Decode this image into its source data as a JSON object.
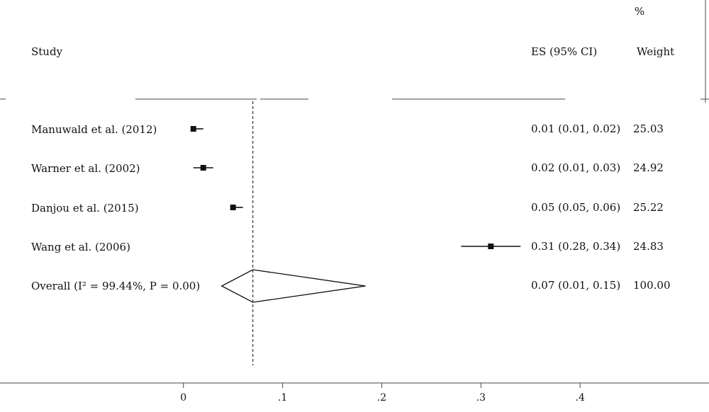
{
  "chart_data": {
    "type": "forest",
    "header": {
      "study_label": "Study",
      "es_label": "ES (95% CI)",
      "weight_label": "Weight",
      "weight_unit": "%"
    },
    "studies": [
      {
        "label": "Manuwald et al. (2012)",
        "es": 0.01,
        "lower": 0.01,
        "upper": 0.02,
        "weight": 25.03,
        "ci_text": "0.01 (0.01, 0.02)",
        "weight_text": "25.03"
      },
      {
        "label": "Warner et al. (2002)",
        "es": 0.02,
        "lower": 0.01,
        "upper": 0.03,
        "weight": 24.92,
        "ci_text": "0.02 (0.01, 0.03)",
        "weight_text": "24.92"
      },
      {
        "label": "Danjou et al. (2015)",
        "es": 0.05,
        "lower": 0.05,
        "upper": 0.06,
        "weight": 25.22,
        "ci_text": "0.05 (0.05, 0.06)",
        "weight_text": "25.22"
      },
      {
        "label": "Wang et al. (2006)",
        "es": 0.31,
        "lower": 0.28,
        "upper": 0.34,
        "weight": 24.83,
        "ci_text": "0.31 (0.28, 0.34)",
        "weight_text": "24.83"
      }
    ],
    "overall": {
      "label": "Overall (I² = 99.44%, P = 0.00)",
      "es": 0.07,
      "lower": 0.01,
      "upper": 0.15,
      "weight": 100.0,
      "ci_text": "0.07 (0.01, 0.15)",
      "weight_text": "100.00"
    },
    "x_axis": {
      "ticks": [
        0,
        0.1,
        0.2,
        0.3,
        0.4
      ],
      "tick_labels": [
        "0",
        ".1",
        ".2",
        ".3",
        ".4"
      ],
      "xlim": [
        -0.185,
        0.53
      ]
    },
    "reference_line": 0.07,
    "colors": {
      "marker": "#111111",
      "line": "#111111",
      "frame": "#444444"
    }
  }
}
